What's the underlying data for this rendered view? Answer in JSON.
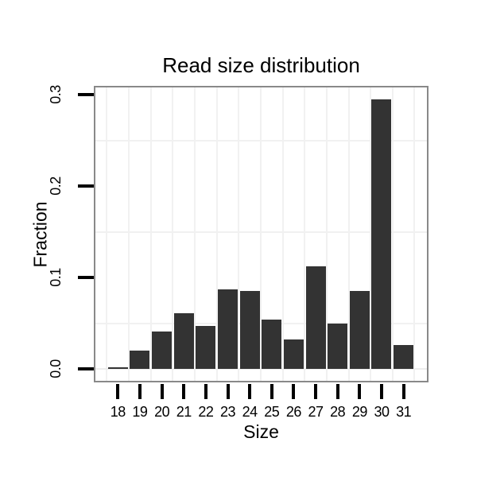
{
  "chart_data": {
    "type": "bar",
    "title": "Read size distribution",
    "xlabel": "Size",
    "ylabel": "Fraction",
    "categories": [
      "18",
      "19",
      "20",
      "21",
      "22",
      "23",
      "24",
      "25",
      "26",
      "27",
      "28",
      "29",
      "30",
      "31"
    ],
    "values": [
      0.002,
      0.02,
      0.041,
      0.061,
      0.047,
      0.087,
      0.085,
      0.054,
      0.032,
      0.112,
      0.05,
      0.085,
      0.295,
      0.026
    ],
    "yticks": [
      0.0,
      0.1,
      0.2,
      0.3
    ],
    "ytick_labels": [
      "0.0",
      "0.1",
      "0.2",
      "0.3"
    ],
    "ylim": [
      0,
      0.31
    ],
    "grid": "faint minor gridlines on white panel",
    "legend": "none",
    "colors": {
      "bar_fill": "#333333",
      "panel_border": "#898989",
      "tick": "#000000",
      "text": "#000000",
      "grid_minor": "#f1f1f1",
      "grid_baseline": "#ededed",
      "background": "#ffffff"
    }
  }
}
